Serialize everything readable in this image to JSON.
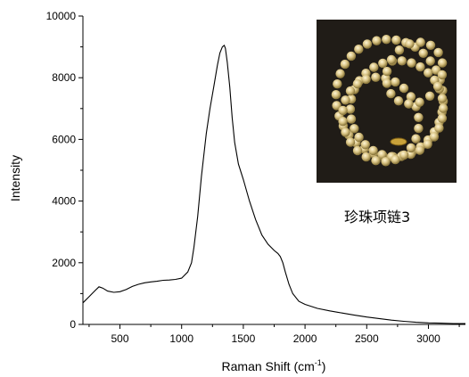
{
  "chart_data": {
    "type": "line",
    "xlabel": "Raman Shift (cm",
    "xlabel_sup": "-1",
    "xlabel_close": ")",
    "ylabel": "Intensity",
    "xlim": [
      200,
      3300
    ],
    "ylim": [
      0,
      10000
    ],
    "xticks": [
      500,
      1000,
      1500,
      2000,
      2500,
      3000
    ],
    "yticks": [
      0,
      2000,
      4000,
      6000,
      8000,
      10000
    ],
    "grid": false,
    "series": [
      {
        "x": [
          200,
          250,
          300,
          330,
          360,
          400,
          450,
          500,
          550,
          600,
          650,
          700,
          750,
          800,
          850,
          900,
          950,
          1000,
          1050,
          1080,
          1100,
          1130,
          1160,
          1200,
          1230,
          1260,
          1290,
          1310,
          1330,
          1345,
          1355,
          1370,
          1390,
          1410,
          1430,
          1460,
          1500,
          1550,
          1600,
          1650,
          1700,
          1750,
          1780,
          1800,
          1820,
          1840,
          1870,
          1900,
          1950,
          2000,
          2100,
          2200,
          2300,
          2400,
          2500,
          2600,
          2700,
          2800,
          2900,
          3000,
          3100,
          3200,
          3300
        ],
        "y": [
          700,
          900,
          1100,
          1220,
          1180,
          1080,
          1040,
          1060,
          1130,
          1230,
          1300,
          1350,
          1380,
          1400,
          1430,
          1440,
          1460,
          1500,
          1700,
          2000,
          2500,
          3500,
          4800,
          6200,
          7000,
          7700,
          8400,
          8800,
          9000,
          9050,
          8950,
          8500,
          7700,
          6700,
          5900,
          5200,
          4700,
          4000,
          3400,
          2900,
          2600,
          2400,
          2300,
          2200,
          2000,
          1700,
          1300,
          1000,
          750,
          650,
          520,
          440,
          370,
          300,
          240,
          190,
          140,
          100,
          70,
          50,
          40,
          30,
          30
        ]
      }
    ]
  },
  "inset": {
    "caption": "珍珠项链3",
    "image_name": "pearl-necklace-photo"
  }
}
